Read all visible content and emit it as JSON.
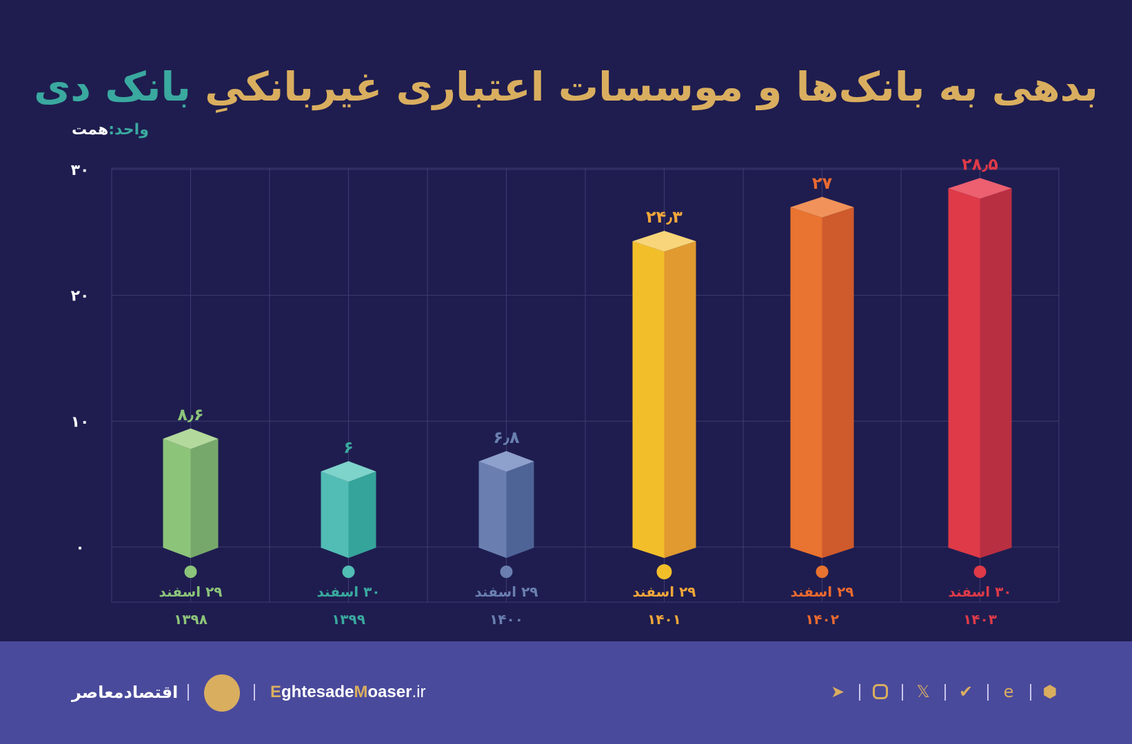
{
  "title": {
    "main": "بدهی به بانک‌ها و موسسات اعتباری غیربانکیِ",
    "accent": "بانک دی"
  },
  "unit": {
    "label": "واحد:",
    "value": "همت"
  },
  "chart_data": {
    "type": "bar",
    "title": "بدهی به بانک‌ها و موسسات اعتباری غیربانکیِ بانک دی",
    "ylabel": "همت",
    "ylim": [
      0,
      30
    ],
    "yticks": [
      0,
      10,
      20,
      30
    ],
    "ytick_labels": [
      "۰",
      "۱۰",
      "۲۰",
      "۳۰"
    ],
    "grid": true,
    "categories": [
      "۲۹ اسفند ۱۳۹۸",
      "۳۰ اسفند ۱۳۹۹",
      "۲۹ اسفند ۱۴۰۰",
      "۲۹ اسفند ۱۴۰۱",
      "۲۹ اسفند ۱۴۰۲",
      "۳۰ اسفند ۱۴۰۳"
    ],
    "bars": [
      {
        "date": "۲۹ اسفند",
        "year": "۱۳۹۸",
        "value": 8.6,
        "label": "۸٫۶",
        "color": "#8cc47a",
        "side": "#77a86b",
        "top": "#b3d99c",
        "text": "#8cc47a"
      },
      {
        "date": "۳۰ اسفند",
        "year": "۱۳۹۹",
        "value": 6,
        "label": "۶",
        "color": "#52bdb5",
        "side": "#35a49a",
        "top": "#7ed3cb",
        "text": "#3aa99f"
      },
      {
        "date": "۲۹ اسفند",
        "year": "۱۴۰۰",
        "value": 6.8,
        "label": "۶٫۸",
        "color": "#6a7fb0",
        "side": "#4e6497",
        "top": "#8ea0cc",
        "text": "#6a7fb0"
      },
      {
        "date": "۲۹ اسفند",
        "year": "۱۴۰۱",
        "value": 24.3,
        "label": "۲۴٫۳",
        "color": "#f2bf2b",
        "side": "#e09a30",
        "top": "#f8d57a",
        "text": "#f2a73a"
      },
      {
        "date": "۲۹ اسفند",
        "year": "۱۴۰۲",
        "value": 27,
        "label": "۲۷",
        "color": "#e97330",
        "side": "#cf5a2c",
        "top": "#f0925a",
        "text": "#e96a30"
      },
      {
        "date": "۳۰ اسفند",
        "year": "۱۴۰۳",
        "value": 28.5,
        "label": "۲۸٫۵",
        "color": "#de3a48",
        "side": "#b92f42",
        "top": "#ec6070",
        "text": "#de3a48"
      }
    ]
  },
  "footer": {
    "brand_fa": "اقتصادمعاصر",
    "site_a": "E",
    "site_b": "ghtesade",
    "site_c": "M",
    "site_d": "oaser",
    "site_e": ".ir",
    "social_icons": [
      "telegram-icon",
      "instagram-icon",
      "x-icon",
      "eitaa-icon",
      "rubika-icon",
      "bale-icon"
    ]
  }
}
